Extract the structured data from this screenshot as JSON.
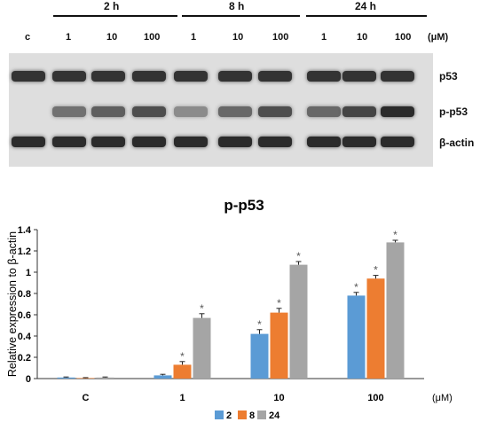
{
  "blot": {
    "groups": [
      {
        "label": "2 h"
      },
      {
        "label": "8 h"
      },
      {
        "label": "24 h"
      }
    ],
    "control_label": "c",
    "concentrations": [
      "1",
      "10",
      "100",
      "1",
      "10",
      "100",
      "1",
      "10",
      "100"
    ],
    "unit": "(μM)",
    "rows": [
      {
        "label": "p53",
        "intensity": [
          0.85,
          0.85,
          0.85,
          0.85,
          0.85,
          0.85,
          0.85,
          0.85,
          0.85,
          0.85
        ]
      },
      {
        "label": "p-p53",
        "intensity": [
          0.02,
          0.5,
          0.6,
          0.7,
          0.35,
          0.55,
          0.7,
          0.55,
          0.75,
          0.9
        ]
      },
      {
        "label": "β-actin",
        "intensity": [
          0.9,
          0.9,
          0.9,
          0.9,
          0.9,
          0.9,
          0.9,
          0.9,
          0.9,
          0.9
        ]
      }
    ]
  },
  "chart_data": {
    "type": "bar",
    "title": "p-p53",
    "ylabel": "Relative expression to β-actin",
    "xunit": "(μM)",
    "categories": [
      "C",
      "1",
      "10",
      "100"
    ],
    "ylim": [
      0,
      1.4
    ],
    "yticks": [
      "0",
      "0.2",
      "0.4",
      "0.6",
      "0.8",
      "1",
      "1.2",
      "1.4"
    ],
    "grid": false,
    "legend_position": "bottom",
    "significance_marker": "*",
    "series": [
      {
        "name": "2",
        "color": "#5b9bd5",
        "values": [
          0.01,
          0.03,
          0.42,
          0.78
        ],
        "errors": [
          0.005,
          0.01,
          0.04,
          0.03
        ],
        "significant": [
          false,
          false,
          true,
          true
        ]
      },
      {
        "name": "8",
        "color": "#ed7d31",
        "values": [
          0.005,
          0.13,
          0.62,
          0.94
        ],
        "errors": [
          0.004,
          0.03,
          0.04,
          0.03
        ],
        "significant": [
          false,
          true,
          true,
          true
        ]
      },
      {
        "name": "24",
        "color": "#a5a5a5",
        "values": [
          0.01,
          0.57,
          1.07,
          1.28
        ],
        "errors": [
          0.005,
          0.04,
          0.03,
          0.02
        ],
        "significant": [
          false,
          true,
          true,
          true
        ]
      }
    ]
  }
}
